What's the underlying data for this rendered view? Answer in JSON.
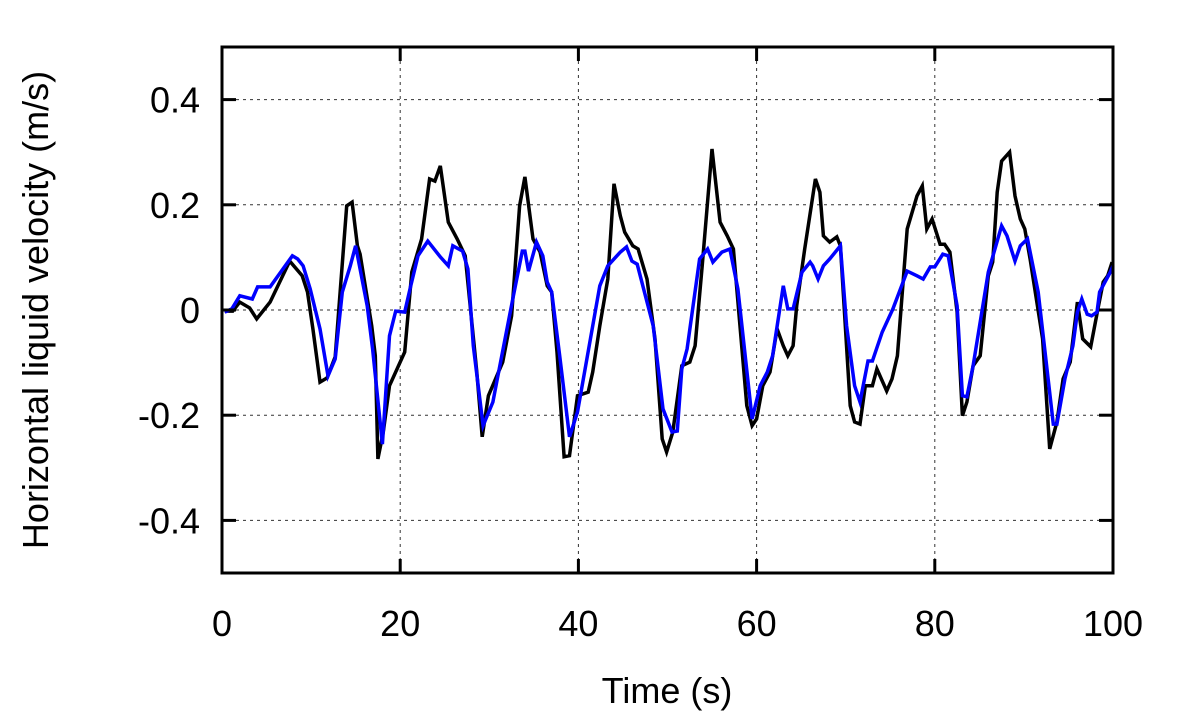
{
  "chart_data": {
    "type": "line",
    "title": "",
    "xlabel": "Time (s)",
    "ylabel": "Horizontal liquid velocity (m/s)",
    "xlim": [
      0,
      100
    ],
    "ylim": [
      -0.5,
      0.5
    ],
    "xticks": [
      0,
      20,
      40,
      60,
      80,
      100
    ],
    "yticks": [
      0.4,
      0.2,
      0,
      -0.2,
      -0.4
    ],
    "xtick_labels": [
      "0",
      "20",
      "40",
      "60",
      "80",
      "100"
    ],
    "ytick_labels": [
      "0.4",
      "0.2",
      "0",
      "-0.2",
      "-0.4"
    ],
    "grid": true,
    "legend": "none",
    "series": [
      {
        "name": "series-black",
        "color": "#000000",
        "points": [
          [
            0.3,
            -0.002
          ],
          [
            1.2,
            -0.002
          ],
          [
            2.0,
            0.015
          ],
          [
            3.1,
            0.004
          ],
          [
            3.9,
            -0.017
          ],
          [
            5.4,
            0.015
          ],
          [
            7.6,
            0.093
          ],
          [
            9.0,
            0.065
          ],
          [
            9.6,
            0.034
          ],
          [
            10.2,
            -0.036
          ],
          [
            11.0,
            -0.137
          ],
          [
            11.8,
            -0.129
          ],
          [
            12.7,
            -0.089
          ],
          [
            14.0,
            0.198
          ],
          [
            14.6,
            0.205
          ],
          [
            15.2,
            0.122
          ],
          [
            15.5,
            0.106
          ],
          [
            16.8,
            -0.03
          ],
          [
            17.2,
            -0.087
          ],
          [
            17.5,
            -0.283
          ],
          [
            18.1,
            -0.232
          ],
          [
            18.8,
            -0.144
          ],
          [
            20.5,
            -0.08
          ],
          [
            21.3,
            0.072
          ],
          [
            22.4,
            0.135
          ],
          [
            23.3,
            0.249
          ],
          [
            23.9,
            0.245
          ],
          [
            24.5,
            0.274
          ],
          [
            25.4,
            0.167
          ],
          [
            26.4,
            0.135
          ],
          [
            27.3,
            0.103
          ],
          [
            28.6,
            -0.118
          ],
          [
            29.2,
            -0.241
          ],
          [
            29.9,
            -0.163
          ],
          [
            31.5,
            -0.099
          ],
          [
            32.5,
            -0.011
          ],
          [
            33.4,
            0.198
          ],
          [
            34.0,
            0.253
          ],
          [
            34.9,
            0.135
          ],
          [
            35.7,
            0.11
          ],
          [
            36.5,
            0.046
          ],
          [
            37.0,
            0.034
          ],
          [
            37.6,
            -0.08
          ],
          [
            38.4,
            -0.279
          ],
          [
            39.0,
            -0.277
          ],
          [
            39.9,
            -0.163
          ],
          [
            41.1,
            -0.156
          ],
          [
            41.6,
            -0.118
          ],
          [
            42.4,
            -0.03
          ],
          [
            43.3,
            0.059
          ],
          [
            44.0,
            0.24
          ],
          [
            44.7,
            0.179
          ],
          [
            45.2,
            0.148
          ],
          [
            46.1,
            0.122
          ],
          [
            46.7,
            0.116
          ],
          [
            47.7,
            0.059
          ],
          [
            48.6,
            -0.055
          ],
          [
            49.4,
            -0.245
          ],
          [
            49.9,
            -0.27
          ],
          [
            50.6,
            -0.232
          ],
          [
            51.6,
            -0.106
          ],
          [
            52.5,
            -0.099
          ],
          [
            53.1,
            -0.068
          ],
          [
            53.9,
            0.084
          ],
          [
            55.0,
            0.306
          ],
          [
            55.9,
            0.167
          ],
          [
            56.7,
            0.141
          ],
          [
            57.4,
            0.116
          ],
          [
            58.9,
            -0.182
          ],
          [
            59.5,
            -0.22
          ],
          [
            60.0,
            -0.207
          ],
          [
            60.7,
            -0.144
          ],
          [
            61.5,
            -0.118
          ],
          [
            62.3,
            -0.036
          ],
          [
            63.0,
            -0.068
          ],
          [
            63.5,
            -0.087
          ],
          [
            64.1,
            -0.068
          ],
          [
            64.5,
            0.008
          ],
          [
            65.4,
            0.116
          ],
          [
            66.6,
            0.249
          ],
          [
            67.1,
            0.224
          ],
          [
            67.5,
            0.141
          ],
          [
            68.2,
            0.129
          ],
          [
            69.0,
            0.139
          ],
          [
            69.4,
            0.122
          ],
          [
            70.5,
            -0.182
          ],
          [
            71.0,
            -0.213
          ],
          [
            71.6,
            -0.217
          ],
          [
            72.2,
            -0.144
          ],
          [
            73.0,
            -0.144
          ],
          [
            73.5,
            -0.112
          ],
          [
            74.6,
            -0.154
          ],
          [
            75.2,
            -0.131
          ],
          [
            75.8,
            -0.087
          ],
          [
            76.9,
            0.154
          ],
          [
            78.0,
            0.217
          ],
          [
            78.6,
            0.236
          ],
          [
            79.1,
            0.154
          ],
          [
            79.7,
            0.173
          ],
          [
            80.6,
            0.125
          ],
          [
            81.1,
            0.125
          ],
          [
            81.7,
            0.11
          ],
          [
            82.5,
            -0.004
          ],
          [
            83.1,
            -0.201
          ],
          [
            83.6,
            -0.175
          ],
          [
            84.3,
            -0.106
          ],
          [
            85.1,
            -0.087
          ],
          [
            86.0,
            0.065
          ],
          [
            86.5,
            0.091
          ],
          [
            87.0,
            0.224
          ],
          [
            87.5,
            0.283
          ],
          [
            88.4,
            0.3
          ],
          [
            89.0,
            0.217
          ],
          [
            89.6,
            0.173
          ],
          [
            90.1,
            0.154
          ],
          [
            90.7,
            0.097
          ],
          [
            92.1,
            -0.055
          ],
          [
            92.9,
            -0.264
          ],
          [
            93.7,
            -0.213
          ],
          [
            94.4,
            -0.131
          ],
          [
            95.2,
            -0.099
          ],
          [
            96.0,
            0.015
          ],
          [
            96.6,
            -0.055
          ],
          [
            97.5,
            -0.07
          ],
          [
            98.3,
            0.002
          ],
          [
            98.9,
            0.053
          ],
          [
            99.4,
            0.065
          ],
          [
            99.9,
            0.091
          ]
        ]
      },
      {
        "name": "series-blue",
        "color": "#0000ff",
        "points": [
          [
            0.3,
            -0.004
          ],
          [
            1.1,
            0.002
          ],
          [
            2.0,
            0.027
          ],
          [
            3.4,
            0.021
          ],
          [
            4.0,
            0.044
          ],
          [
            5.4,
            0.044
          ],
          [
            7.9,
            0.103
          ],
          [
            8.5,
            0.097
          ],
          [
            9.1,
            0.084
          ],
          [
            9.9,
            0.04
          ],
          [
            11.0,
            -0.036
          ],
          [
            11.9,
            -0.125
          ],
          [
            12.7,
            -0.093
          ],
          [
            13.5,
            0.034
          ],
          [
            14.4,
            0.084
          ],
          [
            15.0,
            0.122
          ],
          [
            15.5,
            0.078
          ],
          [
            16.3,
            0.008
          ],
          [
            16.9,
            -0.074
          ],
          [
            18.0,
            -0.255
          ],
          [
            18.8,
            -0.049
          ],
          [
            19.5,
            -0.002
          ],
          [
            20.5,
            -0.004
          ],
          [
            21.1,
            0.04
          ],
          [
            22.0,
            0.103
          ],
          [
            23.1,
            0.131
          ],
          [
            24.5,
            0.101
          ],
          [
            25.4,
            0.084
          ],
          [
            25.9,
            0.122
          ],
          [
            27.0,
            0.112
          ],
          [
            27.6,
            0.078
          ],
          [
            28.2,
            -0.068
          ],
          [
            29.3,
            -0.22
          ],
          [
            30.4,
            -0.175
          ],
          [
            30.9,
            -0.131
          ],
          [
            32.7,
            0.027
          ],
          [
            33.7,
            0.112
          ],
          [
            34.0,
            0.112
          ],
          [
            34.4,
            0.074
          ],
          [
            35.3,
            0.129
          ],
          [
            36.0,
            0.103
          ],
          [
            36.5,
            0.053
          ],
          [
            37.0,
            0.034
          ],
          [
            37.9,
            -0.087
          ],
          [
            39.0,
            -0.241
          ],
          [
            39.9,
            -0.194
          ],
          [
            42.4,
            0.046
          ],
          [
            43.3,
            0.084
          ],
          [
            44.7,
            0.11
          ],
          [
            45.4,
            0.12
          ],
          [
            46.0,
            0.093
          ],
          [
            46.6,
            0.087
          ],
          [
            48.4,
            -0.03
          ],
          [
            49.5,
            -0.188
          ],
          [
            50.5,
            -0.232
          ],
          [
            51.1,
            -0.23
          ],
          [
            51.6,
            -0.112
          ],
          [
            52.2,
            -0.074
          ],
          [
            53.6,
            0.097
          ],
          [
            54.5,
            0.116
          ],
          [
            55.1,
            0.091
          ],
          [
            56.1,
            0.11
          ],
          [
            57.0,
            0.116
          ],
          [
            57.9,
            0.04
          ],
          [
            59.5,
            -0.207
          ],
          [
            60.4,
            -0.144
          ],
          [
            61.2,
            -0.118
          ],
          [
            61.8,
            -0.087
          ],
          [
            63.0,
            0.046
          ],
          [
            63.5,
            0.002
          ],
          [
            64.1,
            0.002
          ],
          [
            65.1,
            0.072
          ],
          [
            66.0,
            0.091
          ],
          [
            66.3,
            0.084
          ],
          [
            66.9,
            0.059
          ],
          [
            67.5,
            0.084
          ],
          [
            68.2,
            0.097
          ],
          [
            69.4,
            0.122
          ],
          [
            70.1,
            -0.03
          ],
          [
            71.0,
            -0.144
          ],
          [
            71.6,
            -0.175
          ],
          [
            72.5,
            -0.097
          ],
          [
            73.0,
            -0.097
          ],
          [
            74.1,
            -0.042
          ],
          [
            75.3,
            0.002
          ],
          [
            76.9,
            0.074
          ],
          [
            78.0,
            0.065
          ],
          [
            78.7,
            0.059
          ],
          [
            79.5,
            0.082
          ],
          [
            80.0,
            0.082
          ],
          [
            80.9,
            0.106
          ],
          [
            81.5,
            0.103
          ],
          [
            82.5,
            0.008
          ],
          [
            83.1,
            -0.163
          ],
          [
            83.6,
            -0.165
          ],
          [
            84.3,
            -0.106
          ],
          [
            86.0,
            0.072
          ],
          [
            87.5,
            0.16
          ],
          [
            88.1,
            0.141
          ],
          [
            89.0,
            0.093
          ],
          [
            89.6,
            0.122
          ],
          [
            90.4,
            0.135
          ],
          [
            91.6,
            0.034
          ],
          [
            93.3,
            -0.217
          ],
          [
            93.7,
            -0.217
          ],
          [
            94.6,
            -0.131
          ],
          [
            95.5,
            -0.068
          ],
          [
            96.0,
            -0.004
          ],
          [
            96.5,
            0.021
          ],
          [
            97.1,
            -0.008
          ],
          [
            97.6,
            -0.011
          ],
          [
            98.2,
            -0.004
          ],
          [
            98.5,
            0.034
          ],
          [
            99.7,
            0.072
          ],
          [
            100.0,
            0.084
          ]
        ]
      }
    ]
  }
}
